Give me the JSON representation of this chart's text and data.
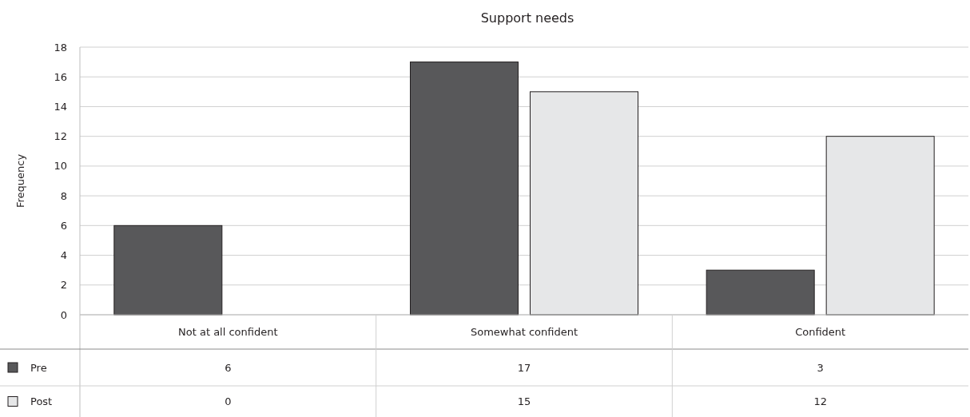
{
  "chart_data": {
    "type": "bar",
    "title": "Support needs",
    "ylabel": "Frequency",
    "categories": [
      "Not at all confident",
      "Somewhat confident",
      "Confident"
    ],
    "series": [
      {
        "name": "Pre",
        "color": "#58585a",
        "values": [
          6,
          17,
          3
        ]
      },
      {
        "name": "Post",
        "color": "#e6e7e8",
        "values": [
          0,
          15,
          12
        ]
      }
    ],
    "ylim": [
      0,
      18
    ],
    "yticks": [
      0,
      2,
      4,
      6,
      8,
      10,
      12,
      14,
      16,
      18
    ],
    "grid": "y",
    "data_labels": true,
    "legend": "bottom left"
  }
}
